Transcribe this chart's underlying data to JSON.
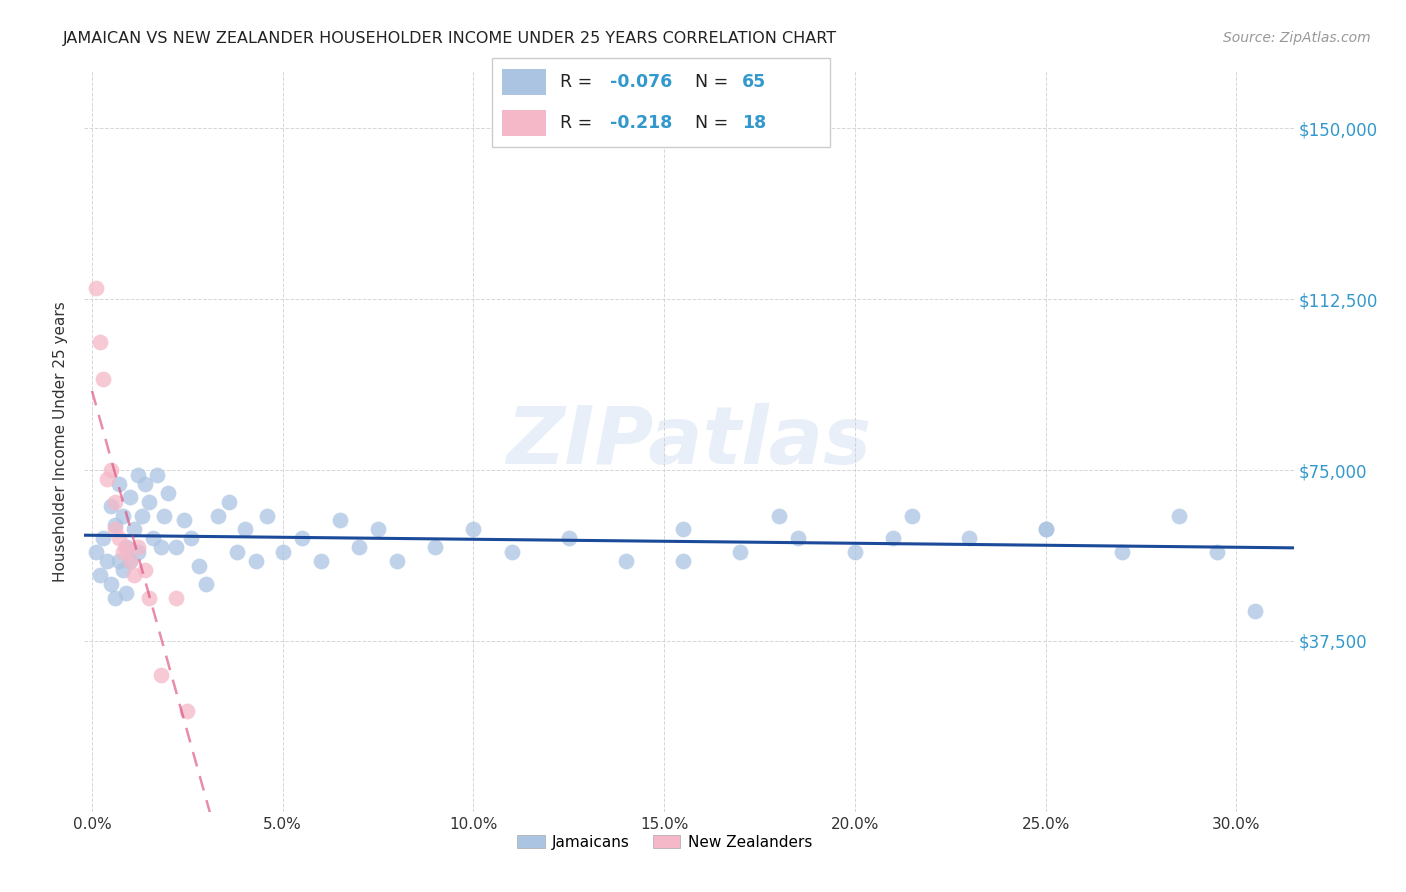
{
  "title": "JAMAICAN VS NEW ZEALANDER HOUSEHOLDER INCOME UNDER 25 YEARS CORRELATION CHART",
  "source": "Source: ZipAtlas.com",
  "ylabel": "Householder Income Under 25 years",
  "ytick_labels": [
    "$37,500",
    "$75,000",
    "$112,500",
    "$150,000"
  ],
  "ytick_vals": [
    37500,
    75000,
    112500,
    150000
  ],
  "ylim": [
    0,
    162500
  ],
  "xlim": [
    -0.002,
    0.315
  ],
  "jamaican_color": "#aac4e2",
  "jamaican_edge_color": "#aac4e2",
  "nz_color": "#f5b8c8",
  "nz_edge_color": "#f5b8c8",
  "jamaican_line_color": "#1a4a99",
  "nz_line_color": "#d94070",
  "background_color": "#ffffff",
  "grid_color": "#cccccc",
  "watermark": "ZIPatlas",
  "jamaican_x": [
    0.001,
    0.002,
    0.003,
    0.004,
    0.005,
    0.005,
    0.006,
    0.006,
    0.007,
    0.007,
    0.008,
    0.008,
    0.009,
    0.009,
    0.01,
    0.01,
    0.011,
    0.012,
    0.012,
    0.013,
    0.014,
    0.015,
    0.016,
    0.017,
    0.018,
    0.019,
    0.02,
    0.022,
    0.024,
    0.026,
    0.028,
    0.03,
    0.033,
    0.036,
    0.038,
    0.04,
    0.043,
    0.046,
    0.05,
    0.055,
    0.06,
    0.065,
    0.07,
    0.075,
    0.08,
    0.09,
    0.1,
    0.11,
    0.125,
    0.14,
    0.155,
    0.17,
    0.185,
    0.2,
    0.215,
    0.23,
    0.25,
    0.27,
    0.285,
    0.295,
    0.155,
    0.18,
    0.21,
    0.25,
    0.305
  ],
  "jamaican_y": [
    57000,
    52000,
    60000,
    55000,
    67000,
    50000,
    63000,
    47000,
    72000,
    55000,
    65000,
    53000,
    58000,
    48000,
    69000,
    55000,
    62000,
    74000,
    57000,
    65000,
    72000,
    68000,
    60000,
    74000,
    58000,
    65000,
    70000,
    58000,
    64000,
    60000,
    54000,
    50000,
    65000,
    68000,
    57000,
    62000,
    55000,
    65000,
    57000,
    60000,
    55000,
    64000,
    58000,
    62000,
    55000,
    58000,
    62000,
    57000,
    60000,
    55000,
    62000,
    57000,
    60000,
    57000,
    65000,
    60000,
    62000,
    57000,
    65000,
    57000,
    55000,
    65000,
    60000,
    62000,
    44000
  ],
  "nz_x": [
    0.001,
    0.002,
    0.003,
    0.004,
    0.005,
    0.006,
    0.006,
    0.007,
    0.008,
    0.009,
    0.01,
    0.011,
    0.012,
    0.014,
    0.015,
    0.018,
    0.022,
    0.025
  ],
  "nz_y": [
    115000,
    103000,
    95000,
    73000,
    75000,
    68000,
    62000,
    60000,
    57000,
    58000,
    55000,
    52000,
    58000,
    53000,
    47000,
    30000,
    47000,
    22000
  ],
  "legend_r1": "-0.076",
  "legend_n1": "65",
  "legend_r2": "-0.218",
  "legend_n2": "18"
}
